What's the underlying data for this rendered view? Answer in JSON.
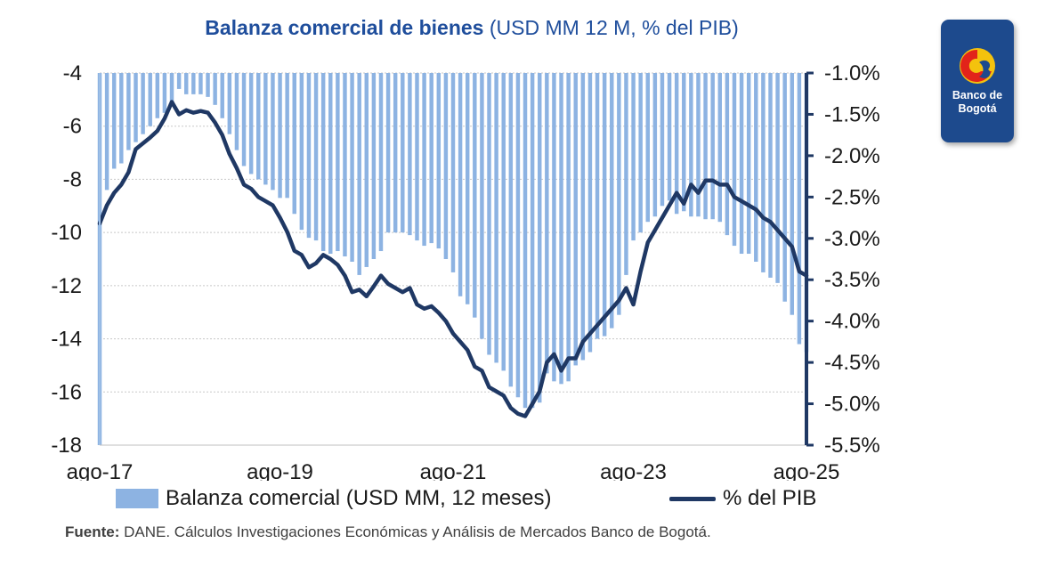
{
  "title": {
    "bold": "Balanza comercial de bienes",
    "light": "(USD MM 12 M, % del PIB)"
  },
  "legend": {
    "bars": "Balanza comercial (USD MM, 12 meses)",
    "line": "% del PIB"
  },
  "source": {
    "label": "Fuente:",
    "text": "DANE. Cálculos Investigaciones Económicas y Análisis de Mercados Banco de Bogotá."
  },
  "logo": {
    "line1": "Banco de",
    "line2": "Bogotá"
  },
  "colors": {
    "bars": "#8db3e2",
    "line": "#1f3864",
    "title": "#1f4e9c",
    "logo_bg": "#1d4a8d"
  },
  "chart_data": {
    "type": "bar",
    "x_tick_labels": [
      "ago-17",
      "ago-19",
      "ago-21",
      "ago-23",
      "ago-25"
    ],
    "y_left": {
      "ylim": [
        -18,
        -4
      ],
      "ticks": [
        "-4",
        "-6",
        "-8",
        "-10",
        "-12",
        "-14",
        "-16",
        "-18"
      ]
    },
    "y_right": {
      "ylim": [
        -5.5,
        -1.0
      ],
      "ticks": [
        "-1.0%",
        "-1.5%",
        "-2.0%",
        "-2.5%",
        "-3.0%",
        "-3.5%",
        "-4.0%",
        "-4.5%",
        "-5.0%",
        "-5.5%"
      ]
    },
    "grid": true,
    "legend_position": "bottom",
    "series": [
      {
        "name": "Balanza comercial (USD MM, 12 meses)",
        "kind": "bar",
        "axis": "left",
        "values": [
          -18.0,
          -8.4,
          -7.6,
          -7.4,
          -6.9,
          -6.6,
          -6.3,
          -6.0,
          -5.7,
          -5.5,
          -5.1,
          -4.6,
          -4.8,
          -4.8,
          -4.8,
          -4.9,
          -5.2,
          -5.7,
          -6.3,
          -6.9,
          -7.5,
          -7.8,
          -8.0,
          -8.2,
          -8.4,
          -8.7,
          -8.7,
          -9.3,
          -9.9,
          -10.2,
          -10.3,
          -10.7,
          -10.8,
          -10.7,
          -10.9,
          -11.1,
          -11.6,
          -11.3,
          -11.0,
          -10.7,
          -10.0,
          -10.0,
          -10.0,
          -10.1,
          -10.3,
          -10.5,
          -10.4,
          -10.6,
          -11.0,
          -11.5,
          -12.4,
          -12.7,
          -13.2,
          -14.0,
          -14.6,
          -14.9,
          -15.2,
          -15.8,
          -16.2,
          -16.6,
          -16.6,
          -16.4,
          -15.3,
          -15.6,
          -15.7,
          -15.6,
          -15.0,
          -14.8,
          -14.5,
          -14.0,
          -13.9,
          -13.6,
          -13.1,
          -11.6,
          -10.3,
          -10.0,
          -9.6,
          -9.4,
          -9.0,
          -8.8,
          -9.3,
          -9.2,
          -9.4,
          -9.4,
          -9.5,
          -9.5,
          -9.6,
          -10.1,
          -10.5,
          -10.8,
          -10.8,
          -11.1,
          -11.5,
          -11.7,
          -11.9,
          -12.6,
          -13.1,
          -14.2,
          -14.5
        ]
      },
      {
        "name": "% del PIB",
        "kind": "line",
        "axis": "right",
        "values": [
          -2.82,
          -2.6,
          -2.45,
          -2.35,
          -2.2,
          -1.92,
          -1.85,
          -1.78,
          -1.7,
          -1.55,
          -1.35,
          -1.5,
          -1.45,
          -1.48,
          -1.46,
          -1.48,
          -1.6,
          -1.75,
          -1.98,
          -2.15,
          -2.35,
          -2.4,
          -2.5,
          -2.55,
          -2.6,
          -2.75,
          -2.92,
          -3.15,
          -3.2,
          -3.35,
          -3.3,
          -3.2,
          -3.25,
          -3.32,
          -3.45,
          -3.65,
          -3.62,
          -3.7,
          -3.58,
          -3.45,
          -3.55,
          -3.6,
          -3.65,
          -3.6,
          -3.8,
          -3.85,
          -3.82,
          -3.9,
          -4.0,
          -4.15,
          -4.25,
          -4.35,
          -4.55,
          -4.6,
          -4.8,
          -4.85,
          -4.9,
          -5.05,
          -5.12,
          -5.15,
          -5.0,
          -4.85,
          -4.5,
          -4.4,
          -4.6,
          -4.45,
          -4.45,
          -4.25,
          -4.15,
          -4.05,
          -3.95,
          -3.85,
          -3.75,
          -3.6,
          -3.8,
          -3.4,
          -3.05,
          -2.9,
          -2.75,
          -2.6,
          -2.45,
          -2.58,
          -2.35,
          -2.45,
          -2.3,
          -2.3,
          -2.35,
          -2.35,
          -2.5,
          -2.55,
          -2.6,
          -2.65,
          -2.75,
          -2.8,
          -2.9,
          -3.0,
          -3.1,
          -3.4,
          -3.45
        ]
      }
    ]
  }
}
